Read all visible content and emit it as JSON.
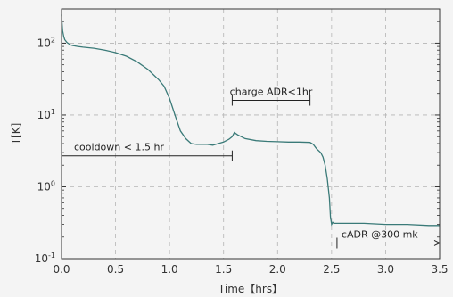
{
  "chart_data": {
    "type": "line",
    "xlabel": "Time【hrs】",
    "ylabel": "T[K]",
    "xlim": [
      0,
      3.5
    ],
    "ylim": [
      0.1,
      300
    ],
    "yscale": "log",
    "grid": true,
    "line_color": "#3a7a78",
    "x_ticks": [
      {
        "value": 0,
        "label": "0.0"
      },
      {
        "value": 0.5,
        "label": "0.5"
      },
      {
        "value": 1.0,
        "label": "1.0"
      },
      {
        "value": 1.5,
        "label": "1.5"
      },
      {
        "value": 2.0,
        "label": "2.0"
      },
      {
        "value": 2.5,
        "label": "2.5"
      },
      {
        "value": 3.0,
        "label": "3.0"
      },
      {
        "value": 3.5,
        "label": "3.5"
      }
    ],
    "y_ticks": [
      {
        "value": 0.1,
        "base": "10",
        "exp": "-1"
      },
      {
        "value": 1,
        "base": "10",
        "exp": "0"
      },
      {
        "value": 10,
        "base": "10",
        "exp": "1"
      },
      {
        "value": 100,
        "base": "10",
        "exp": "2"
      }
    ],
    "series": [
      {
        "x": [
          0.0,
          0.005,
          0.01,
          0.02,
          0.03,
          0.05,
          0.08,
          0.1,
          0.15,
          0.2,
          0.3,
          0.4,
          0.5,
          0.6,
          0.7,
          0.8,
          0.9,
          0.95,
          1.0,
          1.05,
          1.1,
          1.15,
          1.2,
          1.25,
          1.3,
          1.35,
          1.4,
          1.45,
          1.5,
          1.55,
          1.58,
          1.6,
          1.63,
          1.7,
          1.8,
          1.9,
          2.0,
          2.1,
          2.2,
          2.3,
          2.33,
          2.36,
          2.4,
          2.42,
          2.44,
          2.46,
          2.48,
          2.49,
          2.5,
          2.51,
          2.52,
          2.55,
          2.6,
          2.8,
          3.0,
          3.2,
          3.4,
          3.5
        ],
        "y": [
          250,
          190,
          150,
          125,
          112,
          102,
          95,
          93,
          90,
          88,
          85,
          80,
          74,
          66,
          55,
          43,
          31,
          25,
          17,
          10,
          6,
          4.7,
          4.0,
          3.9,
          3.9,
          3.9,
          3.8,
          4.0,
          4.2,
          4.6,
          5.0,
          5.7,
          5.3,
          4.7,
          4.4,
          4.3,
          4.25,
          4.2,
          4.2,
          4.15,
          3.9,
          3.4,
          3.0,
          2.6,
          2.0,
          1.3,
          0.7,
          0.38,
          0.3,
          0.32,
          0.31,
          0.31,
          0.31,
          0.31,
          0.3,
          0.3,
          0.29,
          0.29
        ]
      }
    ],
    "annotations": [
      {
        "text": "cooldown < 1.5 hr",
        "x_start": 0.0,
        "x_end": 1.58,
        "y": 2.7,
        "marker": "bar-end"
      },
      {
        "text": "charge ADR<1hr",
        "x_start": 1.58,
        "x_end": 2.3,
        "y": 16,
        "marker": "bar-both"
      },
      {
        "text": "cADR @300 mk",
        "x_start": 2.55,
        "x_end": 3.5,
        "y": 0.165,
        "marker": "bar-start-arrow"
      }
    ]
  }
}
